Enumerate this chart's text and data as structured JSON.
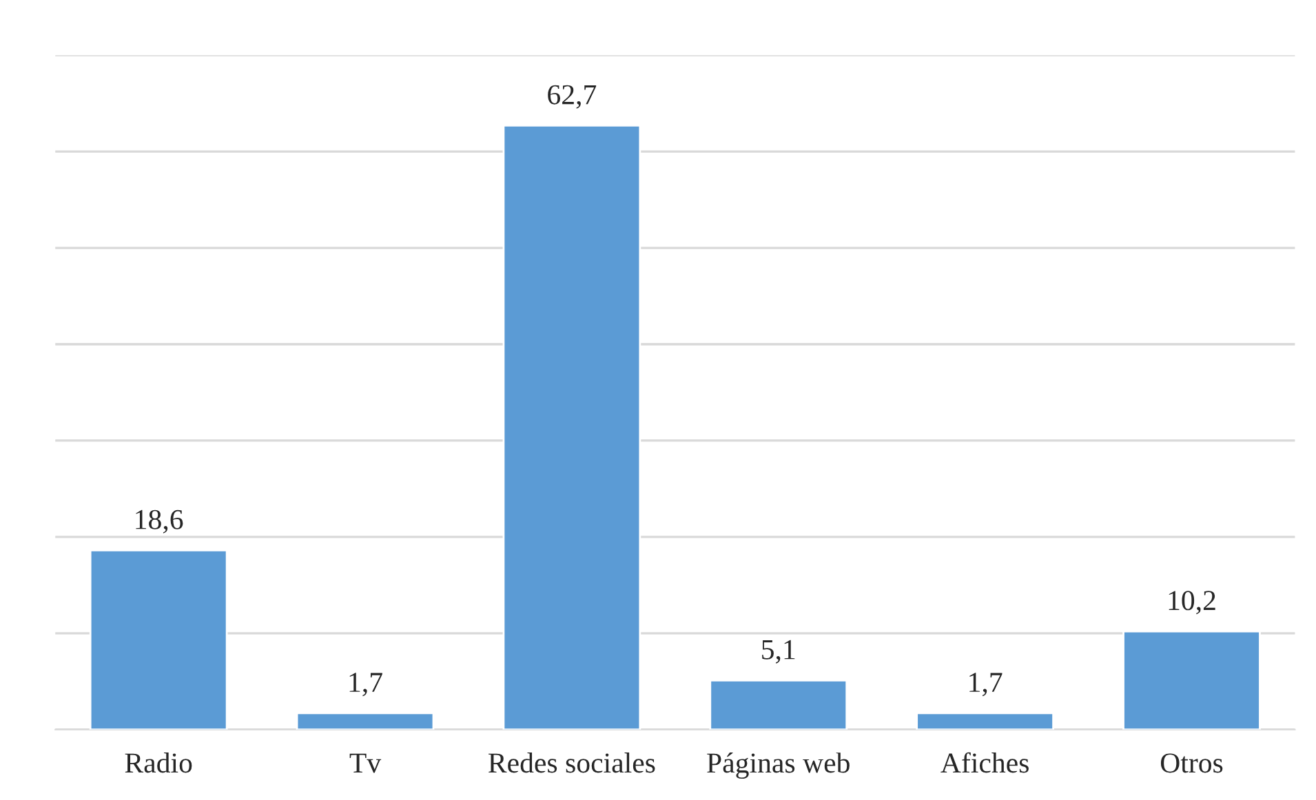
{
  "chart_data": {
    "type": "bar",
    "categories": [
      "Radio",
      "Tv",
      "Redes sociales",
      "Páginas web",
      "Afiches",
      "Otros"
    ],
    "values": [
      18.6,
      1.7,
      62.7,
      5.1,
      1.7,
      10.2
    ],
    "value_labels": [
      "18,6",
      "1,7",
      "62,7",
      "5,1",
      "1,7",
      "10,2"
    ],
    "color": "#5b9bd5",
    "ylim": [
      0,
      70
    ],
    "yticks": [
      {
        "value": 0,
        "label": null
      },
      {
        "value": 10,
        "label": null
      },
      {
        "value": 20,
        "label": null
      },
      {
        "value": 30,
        "label": null
      },
      {
        "value": 40,
        "label": null
      },
      {
        "value": 50,
        "label": null
      },
      {
        "value": 60,
        "label": null
      },
      {
        "value": 70,
        "label": null
      }
    ],
    "grid": "y",
    "tick_labels": "x",
    "legend": false
  }
}
